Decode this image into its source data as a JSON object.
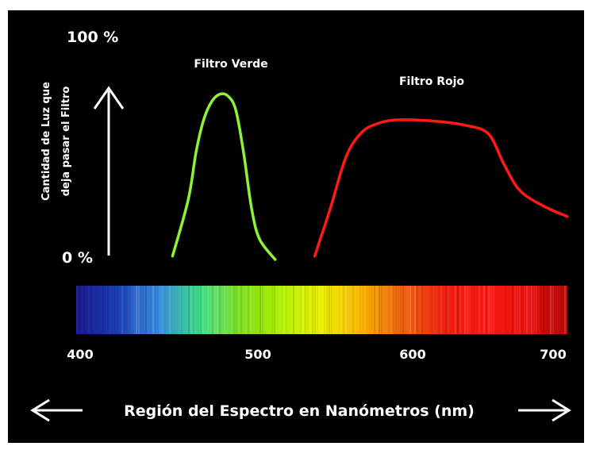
{
  "chart_data": {
    "type": "line",
    "x_range": [
      400,
      700
    ],
    "ylim": [
      0,
      100
    ],
    "y_top_label": "100 %",
    "y_bottom_label": "0 %",
    "ylabel_line1": "Cantidad de Luz que",
    "ylabel_line2": "deja pasar el Filtro",
    "xlabel": "Región del Espectro en Nanómetros (nm)",
    "x_ticks": [
      400,
      500,
      600,
      700
    ],
    "x_tick_labels": [
      "400",
      "500",
      "600",
      "700"
    ],
    "series": [
      {
        "name": "Filtro Verde",
        "color": "#8ef236",
        "x": [
          455,
          465,
          470,
          475,
          480,
          485,
          490,
          495,
          500,
          505,
          510,
          520
        ],
        "y": [
          2,
          35,
          63,
          82,
          92,
          96,
          95,
          87,
          62,
          30,
          12,
          0
        ]
      },
      {
        "name": "Filtro Rojo",
        "color": "#ff1b14",
        "x": [
          545,
          555,
          565,
          575,
          585,
          595,
          610,
          625,
          640,
          655,
          665,
          675,
          690,
          705
        ],
        "y": [
          2,
          30,
          60,
          74,
          79,
          81,
          81,
          80,
          78,
          73,
          55,
          40,
          31,
          25
        ]
      }
    ],
    "spectrum_colors": [
      "#1a1a8c",
      "#1c3fb8",
      "#3a8de0",
      "#3fdc8a",
      "#7fe020",
      "#b0f000",
      "#ecf000",
      "#f8b000",
      "#f06010",
      "#f02010",
      "#ff1a14",
      "#e8100c",
      "#b20808"
    ]
  }
}
